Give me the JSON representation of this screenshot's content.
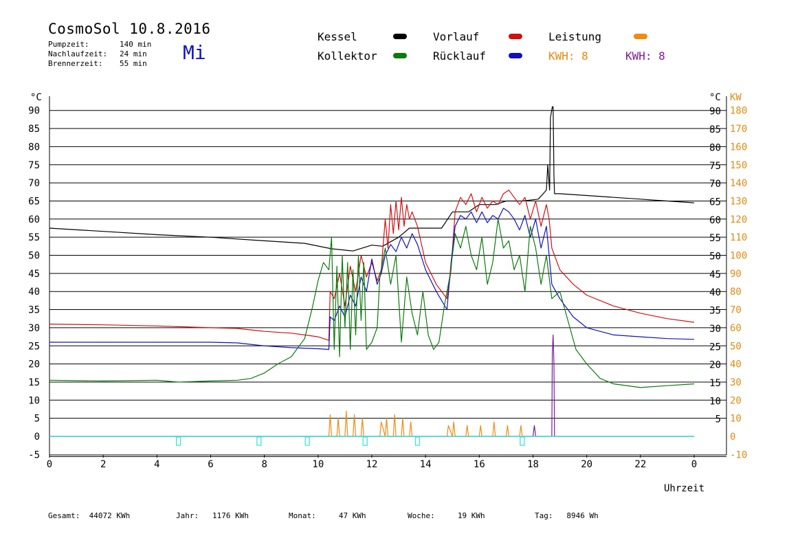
{
  "header": {
    "title": "CosmoSol 10.8.2016",
    "day": "Mi",
    "info": [
      {
        "label": "Pumpzeit:",
        "value": "140 min"
      },
      {
        "label": "Nachlaufzeit:",
        "value": "24 min"
      },
      {
        "label": "Brennerzeit:",
        "value": "55 min"
      }
    ]
  },
  "legend": {
    "kessel": "Kessel",
    "kollektor": "Kollektor",
    "vorlauf": "Vorlauf",
    "ruecklauf": "Rücklauf",
    "leistung": "Leistung",
    "kwh1": "KWH: 8",
    "kwh2": "KWH: 8"
  },
  "colors": {
    "kessel": "#000000",
    "kollektor": "#0a7a0a",
    "vorlauf": "#d01010",
    "ruecklauf": "#1010c0",
    "leistung": "#f08a10",
    "kwh2": "#7a1a9a",
    "baseline": "#40e0e0",
    "kw_axis": "#e08a10"
  },
  "footer": [
    {
      "label": "Gesamt:",
      "value": "44072 KWh"
    },
    {
      "label": "Jahr:",
      "value": "1176 KWh"
    },
    {
      "label": "Monat:",
      "value": "47 KWh"
    },
    {
      "label": "Woche:",
      "value": "19 KWh"
    },
    {
      "label": "Tag:",
      "value": "8946 Wh"
    }
  ],
  "chart_data": {
    "type": "line",
    "xlabel": "Uhrzeit",
    "ylabel_left": "°C",
    "ylabel_right_c": "°C",
    "ylabel_right_kw": "KW",
    "xlim": [
      0,
      24
    ],
    "ylim": [
      -5,
      95
    ],
    "x_ticks": [
      "0",
      "2",
      "4",
      "6",
      "8",
      "10",
      "12",
      "14",
      "16",
      "18",
      "20",
      "22",
      "0"
    ],
    "y_ticks_left": [
      "-5",
      "0",
      "5",
      "10",
      "15",
      "20",
      "25",
      "30",
      "35",
      "40",
      "45",
      "50",
      "55",
      "60",
      "65",
      "70",
      "75",
      "80",
      "85",
      "90"
    ],
    "y_ticks_right_c": [
      "5",
      "10",
      "15",
      "20",
      "25",
      "30",
      "35",
      "40",
      "45",
      "50",
      "55",
      "60",
      "65",
      "70",
      "75",
      "80",
      "85",
      "90"
    ],
    "y_ticks_right_kw": [
      "-10",
      "0",
      "10",
      "20",
      "30",
      "40",
      "50",
      "60",
      "70",
      "80",
      "90",
      "100",
      "110",
      "120",
      "130",
      "140",
      "150",
      "160",
      "170",
      "180"
    ],
    "grid_y": true,
    "series": [
      {
        "name": "Kessel",
        "color": "#000000",
        "x": [
          0,
          2,
          4,
          6,
          8,
          9.5,
          10.5,
          11.3,
          12,
          12.4,
          13,
          13.4,
          14,
          14.6,
          15,
          15.6,
          16,
          16.6,
          17,
          17.6,
          18.2,
          18.5,
          18.55,
          18.62,
          18.65,
          18.72,
          18.75,
          18.78,
          18.8,
          19,
          20,
          21,
          22,
          23,
          24
        ],
        "y": [
          57.5,
          56.6,
          55.7,
          55,
          54,
          53.3,
          51.8,
          51.2,
          52.8,
          52.5,
          55,
          57.5,
          57.5,
          57.5,
          62,
          62,
          64,
          64,
          65,
          65,
          65.5,
          68,
          75,
          68,
          88,
          91,
          91,
          72,
          67,
          67,
          66.5,
          66,
          65.5,
          65,
          64.5
        ]
      },
      {
        "name": "Vorlauf",
        "color": "#d01010",
        "x": [
          0,
          2,
          4,
          6,
          7,
          8,
          9,
          9.5,
          10,
          10.4,
          10.45,
          10.6,
          10.8,
          11,
          11.2,
          11.4,
          11.6,
          11.8,
          12,
          12.2,
          12.35,
          12.5,
          12.6,
          12.7,
          12.8,
          12.9,
          13,
          13.1,
          13.2,
          13.3,
          13.4,
          13.5,
          13.7,
          14,
          14.4,
          14.8,
          14.95,
          15.1,
          15.3,
          15.5,
          15.7,
          15.9,
          16.1,
          16.3,
          16.5,
          16.7,
          16.9,
          17.1,
          17.3,
          17.5,
          17.7,
          17.9,
          18.1,
          18.3,
          18.5,
          18.6,
          18.7,
          19,
          19.5,
          20,
          21,
          22,
          23,
          24
        ],
        "y": [
          31,
          30.8,
          30.5,
          30,
          29.8,
          29,
          28.5,
          28,
          27.5,
          26.5,
          40,
          38,
          45,
          36,
          47,
          40,
          50,
          44,
          48,
          43,
          46,
          60,
          52,
          64,
          56,
          65,
          57,
          66,
          58,
          64,
          60,
          62,
          58,
          48,
          42,
          38,
          46,
          62,
          66,
          64,
          67,
          62,
          66,
          63,
          65,
          64,
          67,
          68,
          66,
          64,
          66,
          60,
          65,
          58,
          64,
          60,
          52,
          46,
          42,
          39,
          36,
          34,
          32.5,
          31.5
        ]
      },
      {
        "name": "Rücklauf",
        "color": "#1010c0",
        "x": [
          0,
          2,
          4,
          6,
          7,
          8,
          9,
          10,
          10.4,
          10.45,
          10.6,
          10.8,
          11,
          11.2,
          11.4,
          11.6,
          11.8,
          12,
          12.2,
          12.35,
          12.5,
          12.7,
          12.9,
          13.1,
          13.3,
          13.5,
          13.7,
          14,
          14.4,
          14.8,
          14.95,
          15.1,
          15.3,
          15.5,
          15.7,
          15.9,
          16.1,
          16.3,
          16.5,
          16.7,
          16.9,
          17.1,
          17.3,
          17.5,
          17.7,
          17.9,
          18.1,
          18.3,
          18.5,
          18.6,
          18.7,
          19,
          19.5,
          20,
          20.5,
          21,
          22,
          23,
          24
        ],
        "y": [
          26,
          26,
          26,
          26,
          25.8,
          25,
          24.5,
          24.2,
          24,
          33,
          32,
          36,
          33,
          39,
          36,
          44,
          40,
          49,
          42,
          45,
          50,
          53,
          51,
          55,
          52,
          56,
          53,
          46,
          40,
          35,
          48,
          58,
          61,
          60,
          62,
          59,
          62,
          59,
          61,
          60,
          63,
          62,
          60,
          57,
          61,
          55,
          60,
          52,
          58,
          50,
          42,
          38,
          33,
          30,
          29,
          28,
          27.5,
          27,
          26.8
        ]
      },
      {
        "name": "Kollektor",
        "color": "#0a7a0a",
        "x": [
          0,
          2,
          4,
          4.8,
          6,
          7,
          7.5,
          8,
          8.5,
          9,
          9.5,
          9.8,
          10,
          10.2,
          10.4,
          10.5,
          10.6,
          10.7,
          10.8,
          10.9,
          11,
          11.1,
          11.2,
          11.3,
          11.4,
          11.5,
          11.6,
          11.7,
          11.8,
          12,
          12.2,
          12.3,
          12.5,
          12.7,
          12.9,
          13.1,
          13.3,
          13.5,
          13.7,
          13.9,
          14.1,
          14.3,
          14.5,
          14.7,
          14.9,
          15.1,
          15.3,
          15.5,
          15.7,
          15.9,
          16.1,
          16.3,
          16.5,
          16.7,
          16.9,
          17.1,
          17.3,
          17.5,
          17.7,
          17.9,
          18.1,
          18.3,
          18.5,
          18.7,
          19,
          19.3,
          19.6,
          20,
          20.5,
          21,
          22,
          23,
          24
        ],
        "y": [
          15.5,
          15.3,
          15.5,
          15,
          15.3,
          15.5,
          16,
          17.5,
          20,
          22,
          27,
          36,
          43,
          48,
          46,
          55,
          24,
          47,
          22,
          50,
          30,
          48,
          24,
          46,
          28,
          50,
          32,
          48,
          24,
          26,
          30,
          44,
          52,
          42,
          50,
          26,
          44,
          34,
          28,
          40,
          28,
          24,
          26,
          36,
          44,
          56,
          52,
          58,
          50,
          46,
          55,
          42,
          48,
          60,
          52,
          54,
          46,
          50,
          40,
          58,
          52,
          42,
          50,
          38,
          40,
          32,
          24,
          20,
          16,
          14.5,
          13.5,
          14,
          14.5
        ]
      },
      {
        "name": "Leistung",
        "color": "#f08a10",
        "x": [
          0,
          10.35,
          10.4,
          10.45,
          10.5,
          10.7,
          10.75,
          10.8,
          11,
          11.05,
          11.1,
          11.3,
          11.35,
          11.4,
          11.6,
          11.65,
          11.7,
          12.3,
          12.35,
          12.5,
          12.55,
          12.6,
          12.8,
          12.85,
          12.9,
          13.1,
          13.15,
          13.2,
          13.4,
          13.45,
          13.5,
          14.8,
          14.85,
          15,
          15.05,
          15.1,
          15.5,
          15.55,
          15.6,
          16,
          16.05,
          16.1,
          16.5,
          16.55,
          16.6,
          17,
          17.05,
          17.1,
          17.5,
          17.55,
          17.6,
          18,
          24
        ],
        "y": [
          0,
          0,
          0,
          6,
          0,
          0,
          5,
          0,
          0,
          7,
          0,
          0,
          6,
          0,
          0,
          5,
          0,
          0,
          4,
          0,
          5,
          0,
          0,
          6,
          0,
          0,
          5,
          0,
          0,
          4,
          0,
          0,
          3,
          0,
          4,
          0,
          0,
          3,
          0,
          0,
          3,
          0,
          0,
          4,
          0,
          0,
          3,
          0,
          0,
          3,
          0,
          0,
          0
        ]
      },
      {
        "name": "KWH",
        "color": "#7a1a9a",
        "x": [
          0,
          17.9,
          18.0,
          18.05,
          18.1,
          18.7,
          18.72,
          18.75,
          18.78,
          18.8,
          24
        ],
        "y": [
          0,
          0,
          0,
          3,
          0,
          0,
          23,
          28,
          20,
          0,
          0
        ]
      },
      {
        "name": "Basis",
        "color": "#40e0e0",
        "x": [
          0,
          24
        ],
        "y": [
          0,
          0
        ]
      }
    ],
    "markers_x": [
      4.8,
      7.8,
      9.6,
      11.75,
      13.7,
      17.6
    ]
  }
}
